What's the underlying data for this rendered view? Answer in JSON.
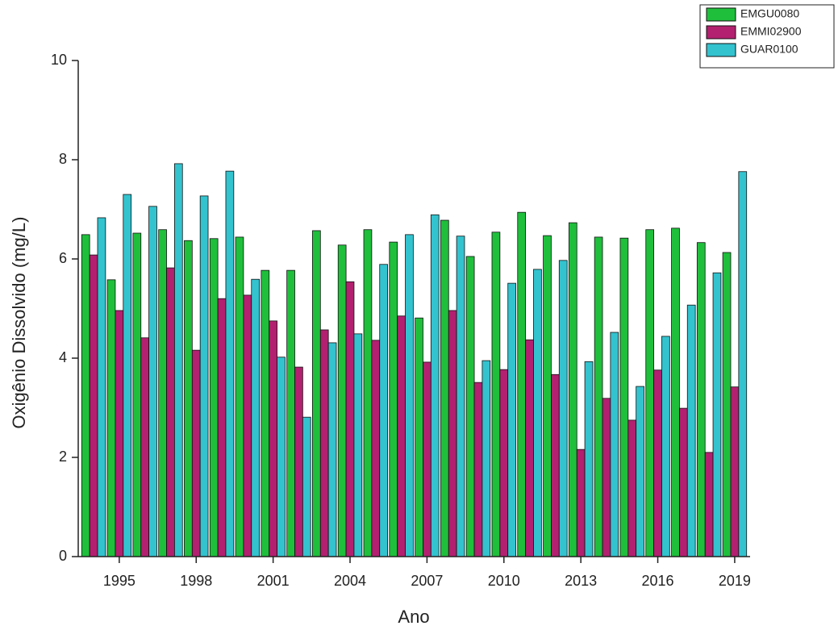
{
  "chart_data": {
    "type": "bar",
    "x_label": "Ano",
    "y_label": "Oxigênio Dissolvido (mg/L)",
    "x": [
      1994,
      1995,
      1996,
      1997,
      1998,
      1999,
      2000,
      2001,
      2002,
      2003,
      2004,
      2005,
      2006,
      2007,
      2008,
      2009,
      2010,
      2011,
      2012,
      2013,
      2014,
      2015,
      2016,
      2017,
      2018,
      2019
    ],
    "series": [
      {
        "name": "EMGU0080",
        "color": "#1fbf3c",
        "values": [
          6.49,
          5.58,
          6.52,
          6.59,
          6.37,
          6.41,
          6.44,
          5.77,
          5.77,
          6.57,
          6.28,
          6.59,
          6.34,
          4.81,
          6.78,
          6.05,
          6.54,
          6.94,
          6.47,
          6.73,
          6.44,
          6.42,
          6.59,
          6.62,
          6.33,
          6.13
        ]
      },
      {
        "name": "EMMI02900",
        "color": "#b3206f",
        "values": [
          6.08,
          4.96,
          4.41,
          5.82,
          4.16,
          5.2,
          5.27,
          4.75,
          3.82,
          4.57,
          5.54,
          4.36,
          4.85,
          3.92,
          4.96,
          3.51,
          3.77,
          4.37,
          3.67,
          2.16,
          3.19,
          2.75,
          3.76,
          2.99,
          2.1,
          3.42
        ]
      },
      {
        "name": "GUAR0100",
        "color": "#33c3cf",
        "values": [
          6.83,
          7.3,
          7.06,
          7.92,
          7.27,
          7.77,
          5.59,
          4.02,
          2.81,
          4.31,
          4.49,
          5.89,
          6.49,
          6.89,
          6.46,
          3.95,
          5.51,
          5.79,
          5.97,
          3.93,
          4.52,
          3.43,
          4.44,
          5.07,
          5.72,
          7.76
        ]
      }
    ],
    "xlim": [
      1993.4,
      2019.6
    ],
    "xticks": [
      1995,
      1998,
      2001,
      2004,
      2007,
      2010,
      2013,
      2016,
      2019
    ],
    "ylim": [
      0,
      10
    ],
    "yticks": [
      0,
      2,
      4,
      6,
      8,
      10
    ],
    "legend": "top-right"
  }
}
